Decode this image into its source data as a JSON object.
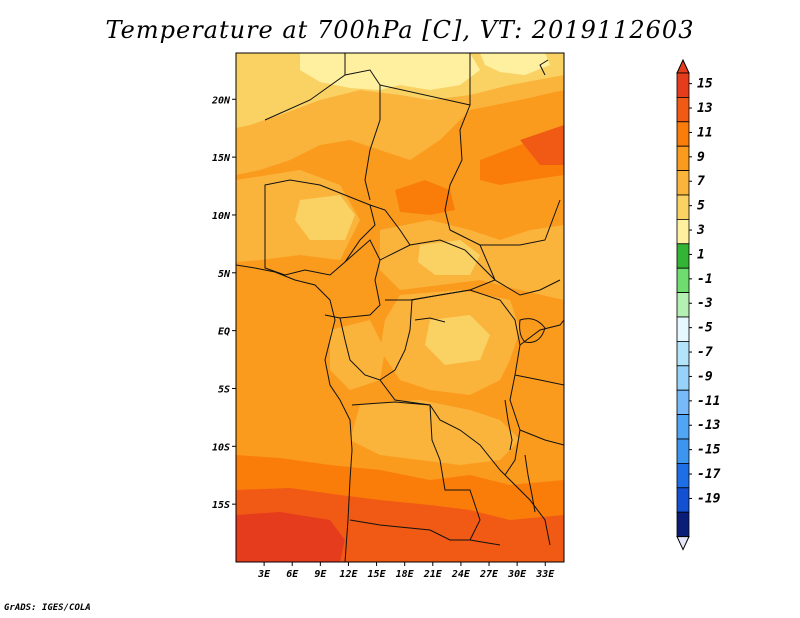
{
  "title": "Temperature at 700hPa [C], VT: 2019112603",
  "footer": "GrADS: IGES/COLA",
  "map": {
    "lon_range": [
      0,
      35
    ],
    "lat_range": [
      -20,
      24
    ],
    "lat_ticks": [
      {
        "value": 20,
        "label": "20N"
      },
      {
        "value": 15,
        "label": "15N"
      },
      {
        "value": 10,
        "label": "10N"
      },
      {
        "value": 5,
        "label": "5N"
      },
      {
        "value": 0,
        "label": "EQ"
      },
      {
        "value": -5,
        "label": "5S"
      },
      {
        "value": -10,
        "label": "10S"
      },
      {
        "value": -15,
        "label": "15S"
      }
    ],
    "lon_ticks": [
      {
        "value": 3,
        "label": "3E"
      },
      {
        "value": 6,
        "label": "6E"
      },
      {
        "value": 9,
        "label": "9E"
      },
      {
        "value": 12,
        "label": "12E"
      },
      {
        "value": 15,
        "label": "15E"
      },
      {
        "value": 18,
        "label": "18E"
      },
      {
        "value": 21,
        "label": "21E"
      },
      {
        "value": 24,
        "label": "24E"
      },
      {
        "value": 27,
        "label": "27E"
      },
      {
        "value": 30,
        "label": "30E"
      },
      {
        "value": 33,
        "label": "33E"
      }
    ]
  },
  "colorbar": {
    "levels": [
      {
        "label": "15",
        "color": "#e63c1e"
      },
      {
        "label": "13",
        "color": "#f05a14"
      },
      {
        "label": "11",
        "color": "#fa7d0a"
      },
      {
        "label": "9",
        "color": "#fa9b1e"
      },
      {
        "label": "7",
        "color": "#fab43c"
      },
      {
        "label": "5",
        "color": "#fad264"
      },
      {
        "label": "3",
        "color": "#fff0a0"
      },
      {
        "label": "1",
        "color": "#34b434"
      },
      {
        "label": "-1",
        "color": "#6edc6e"
      },
      {
        "label": "-3",
        "color": "#b4f0b4"
      },
      {
        "label": "-5",
        "color": "#e6f8ff"
      },
      {
        "label": "-7",
        "color": "#b4e4fa"
      },
      {
        "label": "-9",
        "color": "#96d2fa"
      },
      {
        "label": "-11",
        "color": "#78b9fa"
      },
      {
        "label": "-13",
        "color": "#50a5f5"
      },
      {
        "label": "-15",
        "color": "#3c96f0"
      },
      {
        "label": "-17",
        "color": "#1e6ee6"
      },
      {
        "label": "-19",
        "color": "#1450d2"
      }
    ],
    "top_arrow_color": "#e63c1e",
    "segment_colors": [
      "#e63c1e",
      "#f05a14",
      "#fa7d0a",
      "#fa9b1e",
      "#fab43c",
      "#fad264",
      "#fff0a0",
      "#34b434",
      "#6edc6e",
      "#b4f0b4",
      "#e6f8ff",
      "#b4e4fa",
      "#96d2fa",
      "#78b9fa",
      "#50a5f5",
      "#3c96f0",
      "#1e6ee6",
      "#1450d2",
      "#0a1e78"
    ],
    "bottom_arrow_color": "#e6e6fa"
  }
}
